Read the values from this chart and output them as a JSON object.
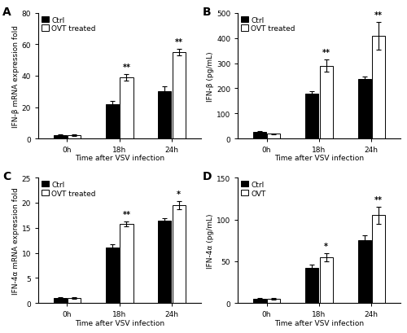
{
  "panels": [
    {
      "label": "A",
      "ylabel": "IFN-β mRNA expression fold",
      "xlabel": "Time after VSV infection",
      "ylim": [
        0,
        80
      ],
      "yticks": [
        0,
        20,
        40,
        60,
        80
      ],
      "xtick_labels": [
        "0h",
        "18h",
        "24h"
      ],
      "ctrl_values": [
        2,
        22,
        30
      ],
      "ctrl_errors": [
        0.5,
        2,
        3
      ],
      "ovt_values": [
        2,
        39,
        55
      ],
      "ovt_errors": [
        0.5,
        2,
        2
      ],
      "sig_labels": [
        "",
        "**",
        "**"
      ],
      "legend_ovt": "OVT treated"
    },
    {
      "label": "B",
      "ylabel": "IFN-β (pg/mL)",
      "xlabel": "Time after VSV infection",
      "ylim": [
        0,
        500
      ],
      "yticks": [
        0,
        100,
        200,
        300,
        400,
        500
      ],
      "xtick_labels": [
        "0h",
        "18h",
        "24h"
      ],
      "ctrl_values": [
        25,
        180,
        238
      ],
      "ctrl_errors": [
        3,
        8,
        10
      ],
      "ovt_values": [
        18,
        290,
        410
      ],
      "ovt_errors": [
        3,
        25,
        55
      ],
      "sig_labels": [
        "",
        "**",
        "**"
      ],
      "legend_ovt": "OVT treated"
    },
    {
      "label": "C",
      "ylabel": "IFN-4α mRNA expression fold",
      "xlabel": "Time after VSV infection",
      "ylim": [
        0,
        25
      ],
      "yticks": [
        0,
        5,
        10,
        15,
        20,
        25
      ],
      "xtick_labels": [
        "0h",
        "18h",
        "24h"
      ],
      "ctrl_values": [
        1,
        11,
        16.5
      ],
      "ctrl_errors": [
        0.1,
        0.8,
        0.4
      ],
      "ovt_values": [
        1,
        15.8,
        19.5
      ],
      "ovt_errors": [
        0.1,
        0.5,
        0.8
      ],
      "sig_labels": [
        "",
        "**",
        "*"
      ],
      "legend_ovt": "OVT treated"
    },
    {
      "label": "D",
      "ylabel": "IFN-4α (pg/mL)",
      "xlabel": "Time after VSV infection",
      "ylim": [
        0,
        150
      ],
      "yticks": [
        0,
        50,
        100,
        150
      ],
      "xtick_labels": [
        "0h",
        "18h",
        "24h"
      ],
      "ctrl_values": [
        5,
        42,
        75
      ],
      "ctrl_errors": [
        1,
        4,
        6
      ],
      "ovt_values": [
        5,
        55,
        105
      ],
      "ovt_errors": [
        1,
        5,
        10
      ],
      "sig_labels": [
        "",
        "*",
        "**"
      ],
      "legend_ovt": "OVT"
    }
  ],
  "bar_width": 0.25,
  "ctrl_color": "#000000",
  "ovt_color": "#ffffff",
  "ctrl_label": "Ctrl",
  "edge_color": "#000000",
  "capsize": 2,
  "font_size": 6.5,
  "label_font_size": 10,
  "sig_font_size": 7,
  "group_centers": [
    0,
    1,
    2
  ],
  "xlim": [
    -0.55,
    2.55
  ]
}
